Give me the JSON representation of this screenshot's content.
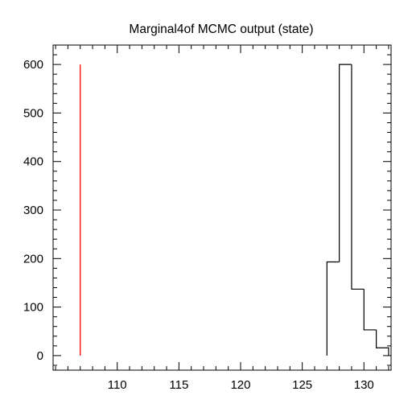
{
  "chart_data": {
    "type": "step-histogram",
    "title": "Marginal4of MCMC output (state)",
    "xlabel": "",
    "ylabel": "",
    "xlim": [
      104.8,
      132.2
    ],
    "ylim": [
      -30,
      640
    ],
    "x_ticks": [
      110,
      115,
      120,
      125,
      130
    ],
    "y_ticks": [
      0,
      100,
      200,
      300,
      400,
      500,
      600
    ],
    "x_minor_step": 1,
    "y_minor_step": 20,
    "histogram": {
      "color": "#000000",
      "bins": [
        {
          "x0": 127,
          "x1": 128,
          "count": 193
        },
        {
          "x0": 128,
          "x1": 129,
          "count": 600
        },
        {
          "x0": 129,
          "x1": 130,
          "count": 137
        },
        {
          "x0": 130,
          "x1": 131,
          "count": 53
        },
        {
          "x0": 131,
          "x1": 132,
          "count": 16
        }
      ]
    },
    "marker_line": {
      "x": 107,
      "y0": 0,
      "y1": 600,
      "color": "#ff0000"
    },
    "grid": false,
    "legend": "none"
  }
}
